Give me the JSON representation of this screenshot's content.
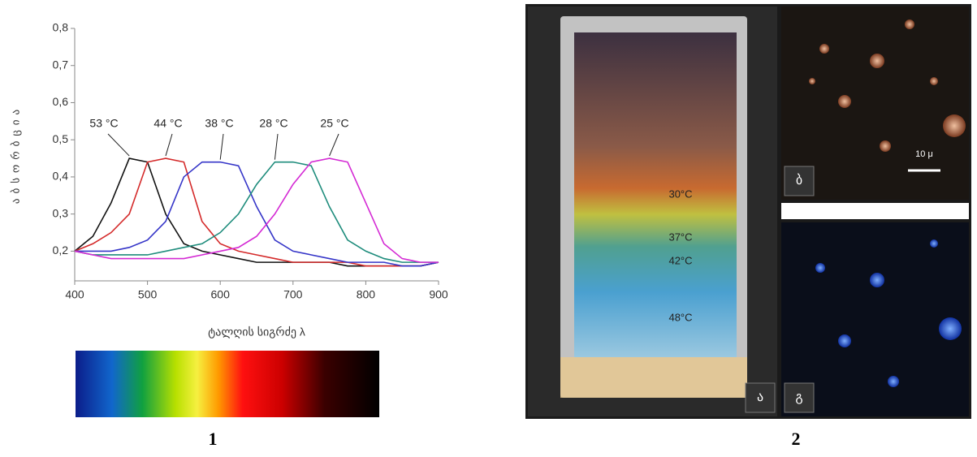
{
  "chart_data": {
    "type": "line",
    "y_label": "აბსორბცია",
    "x_label": "ტალღის სიგრძე λ",
    "x": [
      400,
      425,
      450,
      475,
      500,
      525,
      550,
      575,
      600,
      625,
      650,
      675,
      700,
      725,
      750,
      775,
      800,
      825,
      850,
      875,
      900
    ],
    "series": [
      {
        "name": "53 °C",
        "color": "#111111",
        "values": [
          0.2,
          0.24,
          0.33,
          0.45,
          0.44,
          0.3,
          0.22,
          0.2,
          0.19,
          0.18,
          0.17,
          0.17,
          0.17,
          0.17,
          0.17,
          0.16,
          0.16,
          0.16,
          0.16,
          0.16,
          0.17
        ]
      },
      {
        "name": "44 °C",
        "color": "#d42a2a",
        "values": [
          0.2,
          0.22,
          0.25,
          0.3,
          0.44,
          0.45,
          0.44,
          0.28,
          0.22,
          0.2,
          0.19,
          0.18,
          0.17,
          0.17,
          0.17,
          0.17,
          0.16,
          0.16,
          0.16,
          0.16,
          0.17
        ]
      },
      {
        "name": "38 °C",
        "color": "#3535c8",
        "values": [
          0.2,
          0.2,
          0.2,
          0.21,
          0.23,
          0.28,
          0.4,
          0.44,
          0.44,
          0.43,
          0.32,
          0.23,
          0.2,
          0.19,
          0.18,
          0.17,
          0.17,
          0.17,
          0.16,
          0.16,
          0.17
        ]
      },
      {
        "name": "28 °C",
        "color": "#1e8c7c",
        "values": [
          0.2,
          0.19,
          0.19,
          0.19,
          0.19,
          0.2,
          0.21,
          0.22,
          0.25,
          0.3,
          0.38,
          0.44,
          0.44,
          0.43,
          0.32,
          0.23,
          0.2,
          0.18,
          0.17,
          0.17,
          0.17
        ]
      },
      {
        "name": "25 °C",
        "color": "#d42ad4",
        "values": [
          0.2,
          0.19,
          0.18,
          0.18,
          0.18,
          0.18,
          0.18,
          0.19,
          0.2,
          0.21,
          0.24,
          0.3,
          0.38,
          0.44,
          0.45,
          0.44,
          0.33,
          0.22,
          0.18,
          0.17,
          0.17
        ]
      }
    ],
    "xlim": [
      400,
      900
    ],
    "xticks": [
      400,
      500,
      600,
      700,
      800,
      900
    ],
    "ylim": [
      0.12,
      0.8
    ],
    "yticks": [
      {
        "value": 0.2,
        "label": "0,2"
      },
      {
        "value": 0.3,
        "label": "0,3"
      },
      {
        "value": 0.4,
        "label": "0,4"
      },
      {
        "value": 0.5,
        "label": "0,5"
      },
      {
        "value": 0.6,
        "label": "0,6"
      },
      {
        "value": 0.7,
        "label": "0,7"
      },
      {
        "value": 0.8,
        "label": "0,8"
      }
    ]
  },
  "panels": [
    "1",
    "2"
  ],
  "photo": {
    "temps": [
      "30°C",
      "37°C",
      "42°C",
      "48°C"
    ],
    "labels": [
      "ა",
      "ბ",
      "გ"
    ],
    "scale": "10 μ"
  }
}
